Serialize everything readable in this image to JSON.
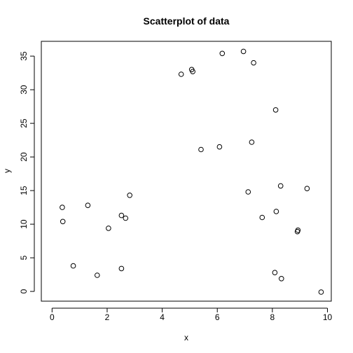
{
  "chart_data": {
    "type": "scatter",
    "title": "Scatterplot of data",
    "xlabel": "x",
    "ylabel": "y",
    "xlim": [
      -0.39,
      10.14
    ],
    "ylim": [
      -1.45,
      37.2
    ],
    "xticks": [
      0,
      2,
      4,
      6,
      8,
      10
    ],
    "yticks": [
      0,
      5,
      10,
      15,
      20,
      25,
      30,
      35
    ],
    "grid": false,
    "points": [
      {
        "x": 0.37,
        "y": 12.5
      },
      {
        "x": 0.39,
        "y": 10.4
      },
      {
        "x": 0.77,
        "y": 3.8
      },
      {
        "x": 1.3,
        "y": 12.8
      },
      {
        "x": 1.64,
        "y": 2.4
      },
      {
        "x": 2.05,
        "y": 9.4
      },
      {
        "x": 2.52,
        "y": 11.3
      },
      {
        "x": 2.52,
        "y": 3.4
      },
      {
        "x": 2.67,
        "y": 10.9
      },
      {
        "x": 2.82,
        "y": 14.3
      },
      {
        "x": 4.69,
        "y": 32.3
      },
      {
        "x": 5.07,
        "y": 33.0
      },
      {
        "x": 5.11,
        "y": 32.7
      },
      {
        "x": 5.41,
        "y": 21.1
      },
      {
        "x": 6.08,
        "y": 21.5
      },
      {
        "x": 6.18,
        "y": 35.4
      },
      {
        "x": 6.95,
        "y": 35.7
      },
      {
        "x": 7.12,
        "y": 14.8
      },
      {
        "x": 7.25,
        "y": 22.2
      },
      {
        "x": 7.32,
        "y": 34.0
      },
      {
        "x": 7.63,
        "y": 11.0
      },
      {
        "x": 8.09,
        "y": 2.8
      },
      {
        "x": 8.12,
        "y": 27.0
      },
      {
        "x": 8.14,
        "y": 11.9
      },
      {
        "x": 8.3,
        "y": 15.7
      },
      {
        "x": 8.33,
        "y": 1.9
      },
      {
        "x": 8.91,
        "y": 8.9
      },
      {
        "x": 8.93,
        "y": 9.1
      },
      {
        "x": 9.26,
        "y": 15.3
      },
      {
        "x": 9.77,
        "y": -0.1
      }
    ]
  }
}
